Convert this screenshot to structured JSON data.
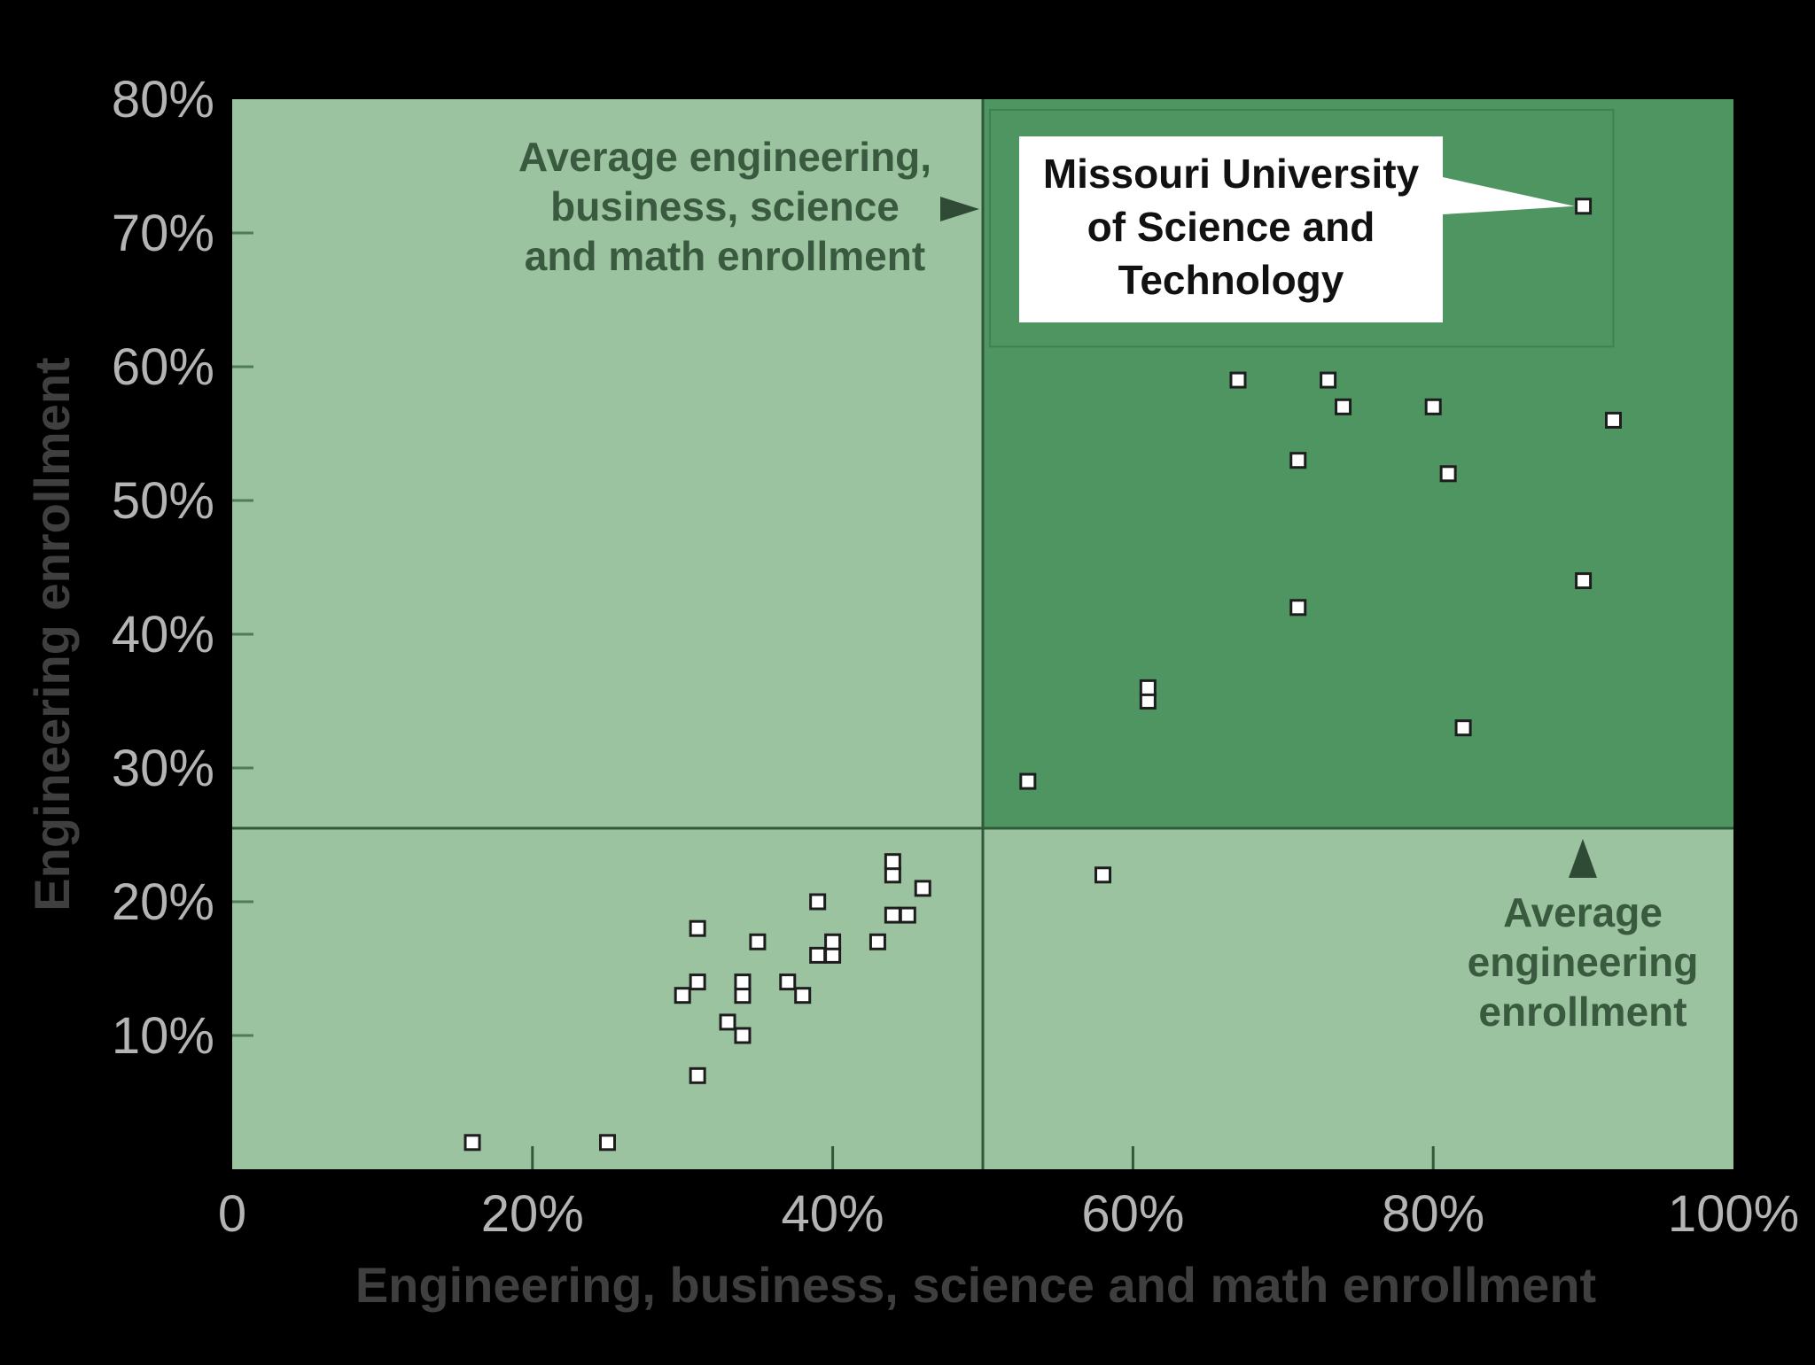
{
  "chart_data": {
    "type": "scatter",
    "xlabel": "Engineering, business, science and math enrollment",
    "ylabel": "Engineering enrollment",
    "xlim": [
      0,
      100
    ],
    "ylim": [
      0,
      80
    ],
    "x_ticks": [
      "0",
      "20%",
      "40%",
      "60%",
      "80%",
      "100%"
    ],
    "y_ticks": [
      "10%",
      "20%",
      "30%",
      "40%",
      "50%",
      "60%",
      "70%",
      "80%"
    ],
    "x_tick_values": [
      0,
      20,
      40,
      60,
      80,
      100
    ],
    "y_tick_values": [
      10,
      20,
      30,
      40,
      50,
      60,
      70,
      80
    ],
    "averages": {
      "x": 50,
      "y": 25.5,
      "x_label": [
        "Average engineering,",
        "business, science",
        "and math enrollment"
      ],
      "y_label": [
        "Average",
        "engineering",
        "enrollment"
      ]
    },
    "highlight": {
      "label": [
        "Missouri University",
        "of Science and",
        "Technology"
      ],
      "x": 90,
      "y": 72
    },
    "colors": {
      "background": "#000000",
      "plot_light": "#9cc39f",
      "plot_dark": "#4f9562",
      "divider": "#2f5a3a",
      "marker_fill": "#ffffff",
      "marker_stroke": "#1d1d1d",
      "callout_bg": "#ffffff"
    },
    "points": [
      {
        "x": 16,
        "y": 2
      },
      {
        "x": 25,
        "y": 2
      },
      {
        "x": 31,
        "y": 7
      },
      {
        "x": 30,
        "y": 13
      },
      {
        "x": 31,
        "y": 14
      },
      {
        "x": 31,
        "y": 18
      },
      {
        "x": 33,
        "y": 11
      },
      {
        "x": 34,
        "y": 10
      },
      {
        "x": 34,
        "y": 13
      },
      {
        "x": 34,
        "y": 14
      },
      {
        "x": 35,
        "y": 17
      },
      {
        "x": 37,
        "y": 14
      },
      {
        "x": 38,
        "y": 13
      },
      {
        "x": 39,
        "y": 16
      },
      {
        "x": 39,
        "y": 20
      },
      {
        "x": 40,
        "y": 16
      },
      {
        "x": 40,
        "y": 17
      },
      {
        "x": 43,
        "y": 17
      },
      {
        "x": 44,
        "y": 19
      },
      {
        "x": 44,
        "y": 22
      },
      {
        "x": 44,
        "y": 23
      },
      {
        "x": 45,
        "y": 19
      },
      {
        "x": 46,
        "y": 21
      },
      {
        "x": 53,
        "y": 29
      },
      {
        "x": 58,
        "y": 22
      },
      {
        "x": 61,
        "y": 35
      },
      {
        "x": 61,
        "y": 36
      },
      {
        "x": 67,
        "y": 59
      },
      {
        "x": 71,
        "y": 53
      },
      {
        "x": 71,
        "y": 42
      },
      {
        "x": 73,
        "y": 59
      },
      {
        "x": 74,
        "y": 57
      },
      {
        "x": 80,
        "y": 57
      },
      {
        "x": 81,
        "y": 52
      },
      {
        "x": 82,
        "y": 33
      },
      {
        "x": 90,
        "y": 44
      },
      {
        "x": 92,
        "y": 56
      },
      {
        "x": 90,
        "y": 72
      }
    ]
  }
}
